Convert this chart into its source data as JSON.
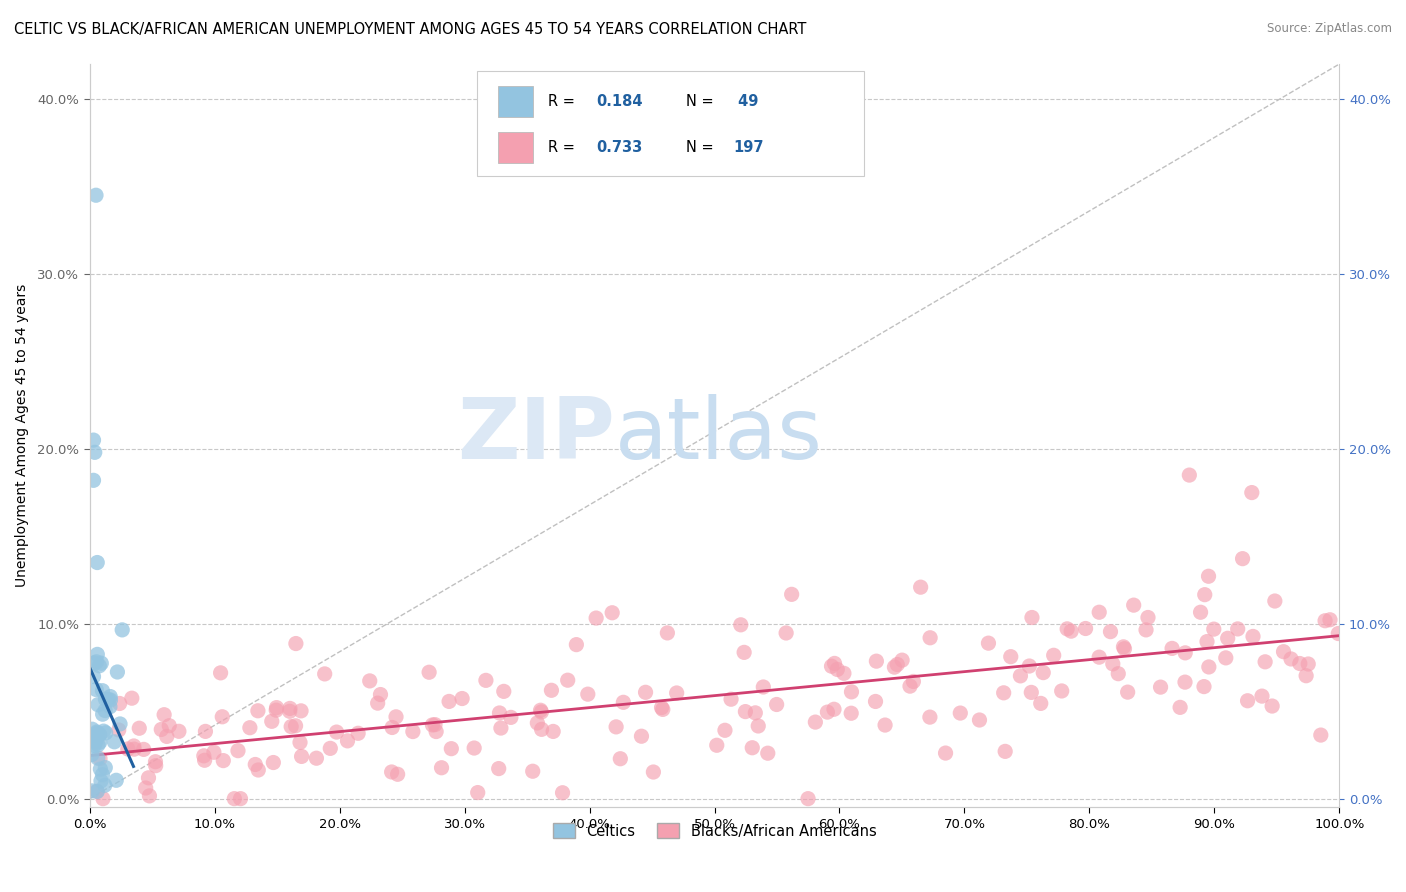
{
  "title": "CELTIC VS BLACK/AFRICAN AMERICAN UNEMPLOYMENT AMONG AGES 45 TO 54 YEARS CORRELATION CHART",
  "source": "Source: ZipAtlas.com",
  "ylabel": "Unemployment Among Ages 45 to 54 years",
  "xlim": [
    0,
    1.0
  ],
  "ylim": [
    -0.005,
    0.42
  ],
  "xticks": [
    0.0,
    0.1,
    0.2,
    0.3,
    0.4,
    0.5,
    0.6,
    0.7,
    0.8,
    0.9,
    1.0
  ],
  "xticklabels": [
    "0.0%",
    "10.0%",
    "20.0%",
    "30.0%",
    "40.0%",
    "50.0%",
    "60.0%",
    "70.0%",
    "80.0%",
    "90.0%",
    "100.0%"
  ],
  "yticks": [
    0.0,
    0.1,
    0.2,
    0.3,
    0.4
  ],
  "yticklabels": [
    "0.0%",
    "10.0%",
    "20.0%",
    "30.0%",
    "40.0%"
  ],
  "blue_scatter_color": "#93c4e0",
  "blue_line_color": "#2060a0",
  "pink_scatter_color": "#f4a0b0",
  "pink_line_color": "#d04070",
  "watermark_zip": "ZIP",
  "watermark_atlas": "atlas",
  "grid_color": "#c8c8c8",
  "background_color": "#ffffff",
  "title_fontsize": 10.5,
  "axis_label_fontsize": 10,
  "tick_fontsize": 9.5,
  "legend_text_color": "#2060a0",
  "right_ytick_color": "#4472c4",
  "seed": 7,
  "n_blue": 49,
  "n_pink": 197
}
